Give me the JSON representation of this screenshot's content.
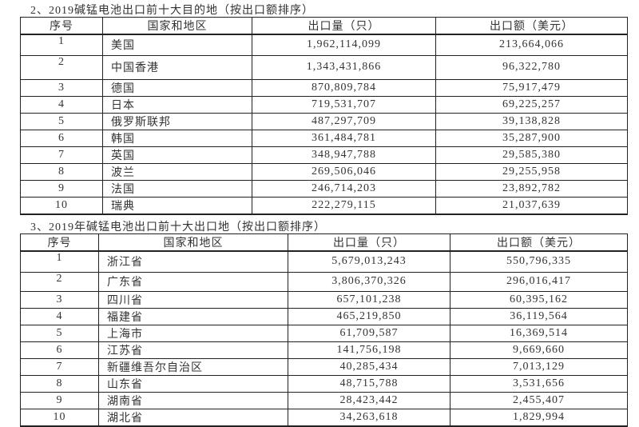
{
  "table1": {
    "title": "2、2019碱锰电池出口前十大目的地（按出口额排序）",
    "headers": [
      "序号",
      "国家和地区",
      "出口量（只）",
      "出口额（美元）"
    ],
    "rows": [
      [
        "1",
        "美国",
        "1,962,114,099",
        "213,664,066"
      ],
      [
        "2",
        "中国香港",
        "1,343,431,866",
        "96,322,780"
      ],
      [
        "3",
        "德国",
        "870,809,784",
        "75,917,479"
      ],
      [
        "4",
        "日本",
        "719,531,707",
        "69,225,257"
      ],
      [
        "5",
        "俄罗斯联邦",
        "487,297,709",
        "39,138,828"
      ],
      [
        "6",
        "韩国",
        "361,484,781",
        "35,287,900"
      ],
      [
        "7",
        "英国",
        "348,947,788",
        "29,585,380"
      ],
      [
        "8",
        "波兰",
        "269,506,046",
        "29,255,958"
      ],
      [
        "9",
        "法国",
        "246,714,203",
        "23,892,782"
      ],
      [
        "10",
        "瑞典",
        "222,279,115",
        "21,037,639"
      ]
    ]
  },
  "table2": {
    "title": "3、2019年碱锰电池出口前十大出口地（按出口额排序）",
    "headers": [
      "序号",
      "国家和地区",
      "出口量（只）",
      "出口额（美元）"
    ],
    "rows": [
      [
        "1",
        "浙江省",
        "5,679,013,243",
        "550,796,335"
      ],
      [
        "2",
        "广东省",
        "3,806,370,326",
        "296,016,417"
      ],
      [
        "3",
        "四川省",
        "657,101,238",
        "60,395,162"
      ],
      [
        "4",
        "福建省",
        "465,219,850",
        "36,119,564"
      ],
      [
        "5",
        "上海市",
        "61,709,587",
        "16,369,514"
      ],
      [
        "6",
        "江苏省",
        "141,756,198",
        "9,669,660"
      ],
      [
        "7",
        "新疆维吾尔自治区",
        "40,285,434",
        "7,013,129"
      ],
      [
        "8",
        "山东省",
        "48,715,788",
        "3,531,656"
      ],
      [
        "9",
        "湖南省",
        "28,423,442",
        "2,455,407"
      ],
      [
        "10",
        "湖北省",
        "34,263,618",
        "1,829,994"
      ]
    ]
  }
}
